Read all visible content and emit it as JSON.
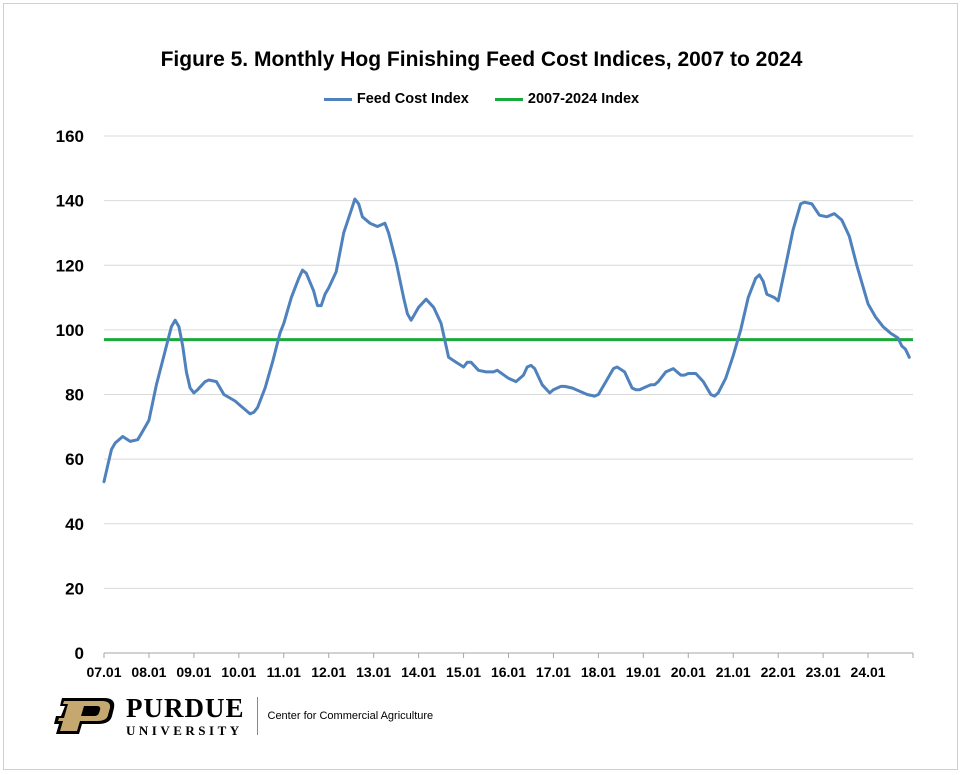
{
  "chart_data": {
    "type": "line",
    "title": "Figure 5.  Monthly Hog Finishing Feed Cost Indices, 2007 to 2024",
    "xlabel": "",
    "ylabel": "",
    "ylim": [
      0,
      160
    ],
    "yticks": [
      0,
      20,
      40,
      60,
      80,
      100,
      120,
      140,
      160
    ],
    "xticks": [
      "07.01",
      "08.01",
      "09.01",
      "10.01",
      "11.01",
      "12.01",
      "13.01",
      "14.01",
      "15.01",
      "16.01",
      "17.01",
      "18.01",
      "19.01",
      "20.01",
      "21.01",
      "22.01",
      "23.01",
      "24.01"
    ],
    "grid": true,
    "legend_position": "top",
    "series": [
      {
        "name": "Feed Cost Index",
        "color": "#4f81bd",
        "anchors": [
          [
            "07.01",
            53
          ],
          [
            "07.02",
            58
          ],
          [
            "07.03",
            63
          ],
          [
            "07.04",
            65
          ],
          [
            "07.06",
            67
          ],
          [
            "07.08",
            65.5
          ],
          [
            "07.10",
            66
          ],
          [
            "07.11",
            68
          ],
          [
            "08.01",
            72
          ],
          [
            "08.03",
            83
          ],
          [
            "08.05",
            92
          ],
          [
            "08.07",
            101
          ],
          [
            "08.08",
            103
          ],
          [
            "08.09",
            101
          ],
          [
            "08.10",
            95
          ],
          [
            "08.11",
            87
          ],
          [
            "08.12",
            82
          ],
          [
            "09.01",
            80.5
          ],
          [
            "09.02",
            81.5
          ],
          [
            "09.04",
            84
          ],
          [
            "09.05",
            84.5
          ],
          [
            "09.07",
            84
          ],
          [
            "09.09",
            80
          ],
          [
            "09.12",
            78
          ],
          [
            "10.01",
            77
          ],
          [
            "10.04",
            74
          ],
          [
            "10.05",
            74.5
          ],
          [
            "10.06",
            76
          ],
          [
            "10.08",
            82
          ],
          [
            "10.10",
            90
          ],
          [
            "10.12",
            99
          ],
          [
            "11.01",
            102
          ],
          [
            "11.03",
            110
          ],
          [
            "11.05",
            116
          ],
          [
            "11.06",
            118.5
          ],
          [
            "11.07",
            117.5
          ],
          [
            "11.09",
            112
          ],
          [
            "11.10",
            107.5
          ],
          [
            "11.11",
            107.5
          ],
          [
            "11.12",
            111
          ],
          [
            "12.01",
            113
          ],
          [
            "12.03",
            118
          ],
          [
            "12.05",
            130
          ],
          [
            "12.07",
            137
          ],
          [
            "12.08",
            140.5
          ],
          [
            "12.09",
            139
          ],
          [
            "12.10",
            135
          ],
          [
            "12.12",
            133
          ],
          [
            "13.02",
            132
          ],
          [
            "13.04",
            133
          ],
          [
            "13.05",
            130
          ],
          [
            "13.07",
            121
          ],
          [
            "13.09",
            110
          ],
          [
            "13.10",
            105
          ],
          [
            "13.11",
            103
          ],
          [
            "13.12",
            105
          ],
          [
            "14.01",
            107
          ],
          [
            "14.03",
            109.5
          ],
          [
            "14.05",
            107
          ],
          [
            "14.07",
            102
          ],
          [
            "14.09",
            91.5
          ],
          [
            "14.11",
            90
          ],
          [
            "15.01",
            88.5
          ],
          [
            "15.02",
            90
          ],
          [
            "15.03",
            90
          ],
          [
            "15.05",
            87.5
          ],
          [
            "15.07",
            87
          ],
          [
            "15.09",
            87
          ],
          [
            "15.10",
            87.5
          ],
          [
            "16.01",
            85
          ],
          [
            "16.03",
            84
          ],
          [
            "16.05",
            86
          ],
          [
            "16.06",
            88.5
          ],
          [
            "16.07",
            89
          ],
          [
            "16.08",
            88
          ],
          [
            "16.10",
            83
          ],
          [
            "16.12",
            80.5
          ],
          [
            "17.01",
            81.5
          ],
          [
            "17.03",
            82.5
          ],
          [
            "17.04",
            82.5
          ],
          [
            "17.06",
            82
          ],
          [
            "17.08",
            81
          ],
          [
            "17.10",
            80
          ],
          [
            "17.12",
            79.5
          ],
          [
            "18.01",
            80
          ],
          [
            "18.03",
            84
          ],
          [
            "18.05",
            88
          ],
          [
            "18.06",
            88.5
          ],
          [
            "18.08",
            87
          ],
          [
            "18.10",
            82
          ],
          [
            "18.11",
            81.5
          ],
          [
            "18.12",
            81.5
          ],
          [
            "19.01",
            82
          ],
          [
            "19.03",
            83
          ],
          [
            "19.04",
            83
          ],
          [
            "19.05",
            84
          ],
          [
            "19.07",
            87
          ],
          [
            "19.09",
            88
          ],
          [
            "19.11",
            86
          ],
          [
            "19.12",
            86
          ],
          [
            "20.01",
            86.5
          ],
          [
            "20.03",
            86.5
          ],
          [
            "20.05",
            84
          ],
          [
            "20.07",
            80
          ],
          [
            "20.08",
            79.5
          ],
          [
            "20.09",
            80.5
          ],
          [
            "20.11",
            85
          ],
          [
            "21.01",
            92
          ],
          [
            "21.03",
            100
          ],
          [
            "21.05",
            110
          ],
          [
            "21.07",
            116
          ],
          [
            "21.08",
            117
          ],
          [
            "21.09",
            115
          ],
          [
            "21.10",
            111
          ],
          [
            "21.12",
            110
          ],
          [
            "22.01",
            109
          ],
          [
            "22.03",
            120
          ],
          [
            "22.05",
            131
          ],
          [
            "22.07",
            139
          ],
          [
            "22.08",
            139.5
          ],
          [
            "22.10",
            139
          ],
          [
            "22.12",
            135.5
          ],
          [
            "23.02",
            135
          ],
          [
            "23.04",
            136
          ],
          [
            "23.06",
            134
          ],
          [
            "23.08",
            129
          ],
          [
            "23.10",
            120
          ],
          [
            "23.12",
            112
          ],
          [
            "24.01",
            108
          ],
          [
            "24.03",
            104
          ],
          [
            "24.05",
            101
          ],
          [
            "24.07",
            99
          ],
          [
            "24.09",
            97.5
          ],
          [
            "24.10",
            95
          ],
          [
            "24.11",
            94
          ],
          [
            "24.12",
            91.5
          ]
        ]
      },
      {
        "name": "2007-2024 Index",
        "color": "#1aaa3c",
        "value": 97
      }
    ]
  },
  "footer": {
    "logo_text": "PURDUE",
    "logo_subtext": "UNIVERSITY",
    "center_text": "Center for Commercial Agriculture"
  }
}
